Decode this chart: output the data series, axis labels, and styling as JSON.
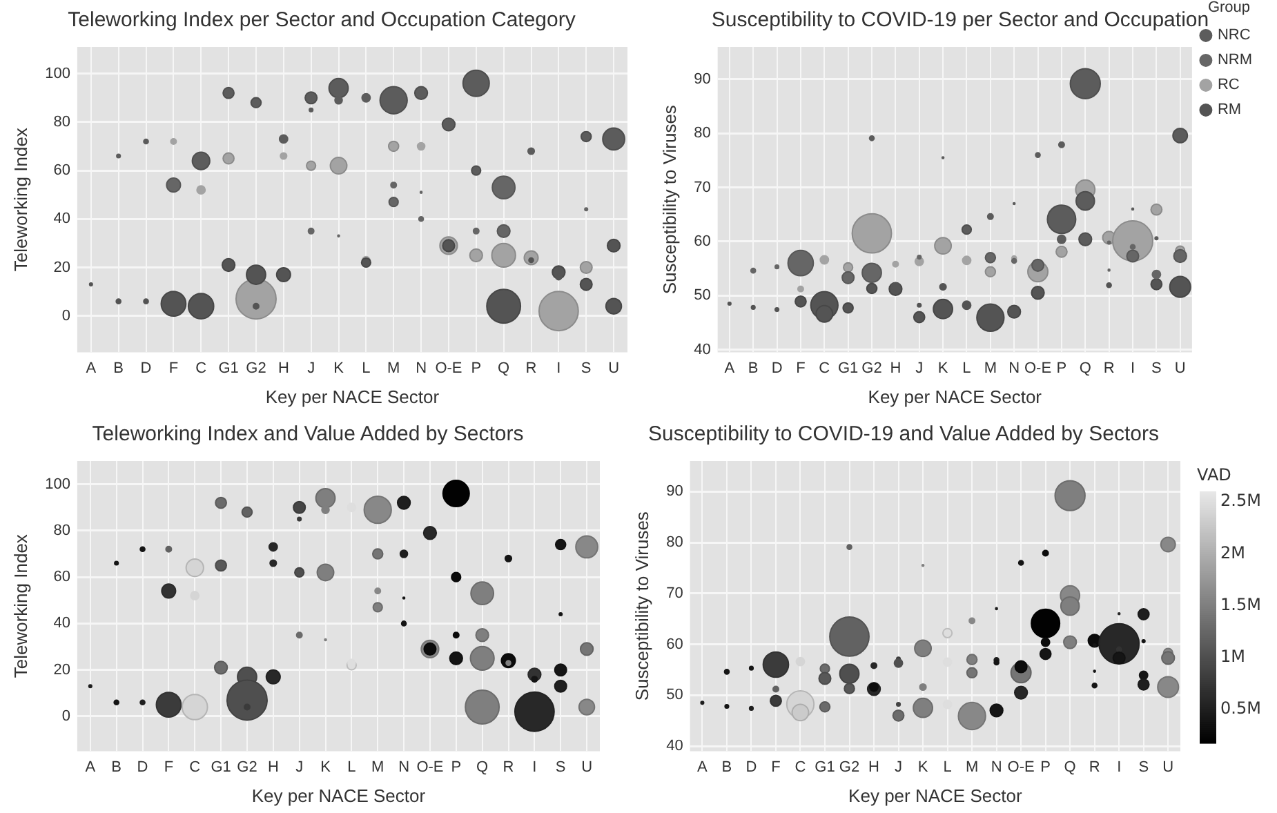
{
  "chart_data": [
    {
      "type": "bubble",
      "title": "Teleworking Index per Sector and Occupation Category",
      "xlabel": "Key per NACE Sector",
      "ylabel": "Teleworking Index",
      "categories": [
        "A",
        "B",
        "D",
        "F",
        "C",
        "G1",
        "G2",
        "H",
        "J",
        "K",
        "L",
        "M",
        "N",
        "O-E",
        "P",
        "Q",
        "R",
        "I",
        "S",
        "U"
      ],
      "ylim": [
        -15,
        111
      ],
      "yticks": [
        0,
        20,
        40,
        60,
        80,
        100
      ],
      "grid": true,
      "legend": false,
      "series": [
        {
          "color": "#5c5c5c",
          "x": [
            "B",
            "D",
            "C",
            "G1",
            "G2",
            "H",
            "J",
            "J",
            "K",
            "K",
            "L",
            "M",
            "N",
            "O-E",
            "P",
            "P",
            "R",
            "S",
            "U"
          ],
          "values": [
            66,
            72,
            64,
            92,
            88,
            73,
            90,
            85,
            94,
            89,
            90,
            89,
            92,
            79,
            96,
            60,
            68,
            74,
            73
          ],
          "sizes": [
            0.008,
            0.013,
            0.19,
            0.074,
            0.063,
            0.042,
            0.087,
            0.008,
            0.23,
            0.033,
            0.042,
            0.46,
            0.1,
            0.1,
            0.43,
            0.052,
            0.025,
            0.063,
            0.3
          ]
        },
        {
          "color": "#666666",
          "x": [
            "F",
            "J",
            "K",
            "M",
            "M",
            "N",
            "N",
            "P",
            "Q",
            "Q",
            "S"
          ],
          "values": [
            54,
            35,
            33,
            54,
            47,
            51,
            40,
            35,
            53,
            35,
            44
          ],
          "sizes": [
            0.12,
            0.019,
            0.002,
            0.019,
            0.052,
            0.002,
            0.013,
            0.019,
            0.32,
            0.1,
            0.005
          ]
        },
        {
          "color": "#a3a3a3",
          "x": [
            "F",
            "C",
            "G1",
            "G2",
            "H",
            "J",
            "K",
            "L",
            "M",
            "N",
            "O-E",
            "P",
            "Q",
            "R",
            "I",
            "S"
          ],
          "values": [
            72,
            52,
            65,
            7,
            66,
            62,
            62,
            23,
            70,
            70,
            29,
            25,
            25,
            24,
            2,
            20
          ],
          "sizes": [
            0.019,
            0.042,
            0.074,
            1,
            0.025,
            0.052,
            0.17,
            0.033,
            0.063,
            0.033,
            0.19,
            0.1,
            0.35,
            0.12,
            0.96,
            0.087
          ]
        },
        {
          "color": "#545454",
          "x": [
            "A",
            "B",
            "D",
            "F",
            "C",
            "G1",
            "G2",
            "G2",
            "H",
            "L",
            "O-E",
            "R",
            "I",
            "I",
            "S",
            "U",
            "U",
            "Q"
          ],
          "values": [
            13,
            6,
            6,
            5,
            4,
            21,
            17,
            4,
            17,
            22,
            29,
            23,
            18,
            16,
            13,
            29,
            4,
            4
          ],
          "sizes": [
            0.005,
            0.013,
            0.013,
            0.38,
            0.4,
            0.1,
            0.23,
            0.019,
            0.12,
            0.052,
            0.087,
            0.013,
            0.1,
            0.019,
            0.087,
            0.1,
            0.15,
            0.71
          ]
        }
      ]
    },
    {
      "type": "bubble",
      "title": "Susceptibility to COVID-19 per Sector and Occupation",
      "xlabel": "Key per NACE Sector",
      "ylabel": "Susceptibility to Viruses",
      "categories": [
        "A",
        "B",
        "D",
        "F",
        "C",
        "G1",
        "G2",
        "H",
        "J",
        "K",
        "L",
        "M",
        "N",
        "O-E",
        "P",
        "Q",
        "R",
        "I",
        "S",
        "U"
      ],
      "ylim": [
        39.5,
        96
      ],
      "yticks": [
        40,
        50,
        60,
        70,
        80,
        90
      ],
      "grid": true,
      "legend": "top right",
      "legend_title": "Group",
      "series": [
        {
          "name": "NRC",
          "color": "#5c5c5c",
          "x": [
            "G2",
            "K",
            "L",
            "M",
            "N",
            "O-E",
            "P",
            "P",
            "P",
            "Q",
            "Q",
            "Q",
            "I",
            "S",
            "U"
          ],
          "values": [
            79.1,
            75.5,
            62.2,
            64.6,
            67,
            76,
            77.9,
            64.1,
            60.4,
            89.2,
            67.5,
            60.4,
            66,
            60.6,
            79.6
          ],
          "sizes": [
            0.013,
            0.002,
            0.052,
            0.019,
            0.002,
            0.013,
            0.019,
            0.5,
            0.042,
            0.56,
            0.21,
            0.1,
            0.002,
            0.005,
            0.13
          ]
        },
        {
          "name": "NRM",
          "color": "#666666",
          "x": [
            "B",
            "D",
            "F",
            "G1",
            "G2",
            "J",
            "M",
            "N",
            "O-E",
            "R",
            "R",
            "I",
            "I",
            "S",
            "U"
          ],
          "values": [
            54.6,
            55.3,
            56,
            53.3,
            54.2,
            57.1,
            57,
            56.4,
            55.6,
            59.8,
            54.7,
            57.3,
            59,
            53.9,
            57.3
          ],
          "sizes": [
            0.013,
            0.008,
            0.4,
            0.087,
            0.23,
            0.008,
            0.063,
            0.013,
            0.087,
            0.005,
            0.002,
            0.087,
            0.013,
            0.042,
            0.1
          ]
        },
        {
          "name": "RC",
          "color": "#a3a3a3",
          "x": [
            "F",
            "C",
            "G1",
            "G2",
            "H",
            "J",
            "K",
            "L",
            "M",
            "N",
            "O-E",
            "P",
            "Q",
            "R",
            "I",
            "S",
            "U"
          ],
          "values": [
            51.2,
            56.6,
            55.2,
            61.5,
            55.8,
            56.3,
            59.2,
            56.5,
            54.4,
            56.9,
            54.4,
            58.1,
            69.6,
            60.7,
            60.1,
            65.9,
            58.3
          ],
          "sizes": [
            0.019,
            0.042,
            0.052,
            0.96,
            0.019,
            0.042,
            0.17,
            0.042,
            0.063,
            0.013,
            0.25,
            0.074,
            0.23,
            0.1,
            1,
            0.074,
            0.052
          ]
        },
        {
          "name": "RM",
          "color": "#545454",
          "x": [
            "A",
            "B",
            "D",
            "F",
            "C",
            "C",
            "G1",
            "G2",
            "H",
            "H",
            "J",
            "J",
            "K",
            "K",
            "L",
            "M",
            "N",
            "O-E",
            "R",
            "S",
            "U"
          ],
          "values": [
            48.5,
            47.8,
            47.4,
            48.9,
            48.2,
            46.6,
            47.7,
            51.3,
            51.2,
            51.6,
            48.2,
            46,
            51.6,
            47.5,
            48.2,
            45.9,
            47,
            50.5,
            51.9,
            52.1,
            51.6
          ],
          "sizes": [
            0.005,
            0.008,
            0.008,
            0.074,
            0.46,
            0.17,
            0.063,
            0.063,
            0.1,
            0.042,
            0.008,
            0.074,
            0.025,
            0.23,
            0.042,
            0.46,
            0.1,
            0.1,
            0.013,
            0.074,
            0.27
          ]
        }
      ]
    },
    {
      "type": "bubble",
      "title": "Teleworking Index and Value Added by Sectors",
      "xlabel": "Key per NACE Sector",
      "ylabel": "Teleworking Index",
      "categories": [
        "A",
        "B",
        "D",
        "F",
        "C",
        "G1",
        "G2",
        "H",
        "J",
        "K",
        "L",
        "M",
        "N",
        "O-E",
        "P",
        "Q",
        "R",
        "I",
        "S",
        "U"
      ],
      "ylim": [
        -15,
        110
      ],
      "yticks": [
        0,
        20,
        40,
        60,
        80,
        100
      ],
      "grid": true,
      "legend": false,
      "series": [
        {
          "x": [
            "A",
            "B",
            "B",
            "D",
            "D",
            "F",
            "F",
            "F",
            "C",
            "C",
            "C",
            "G1",
            "G1",
            "G1",
            "G2",
            "G2",
            "G2",
            "G2",
            "H",
            "H",
            "H",
            "J",
            "J",
            "J",
            "J",
            "K",
            "K",
            "K",
            "K",
            "L",
            "L",
            "L",
            "M",
            "M",
            "M",
            "M",
            "N",
            "N",
            "N",
            "N",
            "O-E",
            "O-E",
            "O-E",
            "P",
            "P",
            "P",
            "P",
            "Q",
            "Q",
            "Q",
            "Q",
            "R",
            "R",
            "R",
            "I",
            "I",
            "I",
            "S",
            "S",
            "S",
            "S",
            "U",
            "U",
            "U"
          ],
          "values": [
            13,
            66,
            6,
            72,
            6,
            72,
            54,
            5,
            64,
            52,
            4,
            92,
            65,
            21,
            88,
            17,
            7,
            4,
            73,
            66,
            17,
            90,
            85,
            62,
            35,
            94,
            89,
            62,
            33,
            90,
            22,
            23,
            89,
            70,
            54,
            47,
            92,
            70,
            51,
            40,
            79,
            29,
            29,
            96,
            60,
            35,
            25,
            53,
            35,
            25,
            4,
            68,
            24,
            23,
            2,
            18,
            16,
            74,
            44,
            20,
            13,
            73,
            29,
            4
          ],
          "sizes": [
            0.005,
            0.008,
            0.013,
            0.013,
            0.013,
            0.019,
            0.12,
            0.38,
            0.19,
            0.042,
            0.4,
            0.074,
            0.074,
            0.1,
            0.063,
            0.23,
            1,
            0.019,
            0.042,
            0.025,
            0.12,
            0.087,
            0.008,
            0.052,
            0.019,
            0.23,
            0.033,
            0.17,
            0.002,
            0.042,
            0.052,
            0.033,
            0.46,
            0.063,
            0.019,
            0.052,
            0.1,
            0.033,
            0.002,
            0.013,
            0.1,
            0.19,
            0.087,
            0.43,
            0.052,
            0.019,
            0.1,
            0.32,
            0.1,
            0.35,
            0.71,
            0.025,
            0.12,
            0.013,
            0.96,
            0.1,
            0.019,
            0.063,
            0.005,
            0.087,
            0.087,
            0.3,
            0.1,
            0.15
          ],
          "colors": [
            "#1f1f1f",
            "#151515",
            "#151515",
            "#151515",
            "#1f1f1f",
            "#626262",
            "#323232",
            "#3b3b3b",
            "#d5d5d5",
            "#d5d5d5",
            "#d5d5d5",
            "#6b6b6b",
            "#585858",
            "#6b6b6b",
            "#626262",
            "#4f4f4f",
            "#4f4f4f",
            "#3b3b3b",
            "#282828",
            "#282828",
            "#282828",
            "#454545",
            "#3b3b3b",
            "#4f4f4f",
            "#6b6b6b",
            "#7f7f7f",
            "#7f7f7f",
            "#7f7f7f",
            "#7f7f7f",
            "#dedede",
            "#dedede",
            "#dedede",
            "#888888",
            "#757575",
            "#888888",
            "#7f7f7f",
            "#1f1f1f",
            "#1f1f1f",
            "#151515",
            "#151515",
            "#282828",
            "#888888",
            "#0c0c0c",
            "#020202",
            "#0c0c0c",
            "#0c0c0c",
            "#151515",
            "#7f7f7f",
            "#7f7f7f",
            "#7f7f7f",
            "#7f7f7f",
            "#151515",
            "#0c0c0c",
            "#7f7f7f",
            "#282828",
            "#323232",
            "#151515",
            "#151515",
            "#151515",
            "#151515",
            "#1f1f1f",
            "#888888",
            "#757575",
            "#888888"
          ]
        }
      ]
    },
    {
      "type": "bubble",
      "title": "Susceptibility to COVID-19 and Value Added by Sectors",
      "xlabel": "Key per NACE Sector",
      "ylabel": "Susceptibility to Viruses",
      "categories": [
        "A",
        "B",
        "D",
        "F",
        "C",
        "G1",
        "G2",
        "H",
        "J",
        "K",
        "L",
        "M",
        "N",
        "O-E",
        "P",
        "Q",
        "R",
        "I",
        "S",
        "U"
      ],
      "ylim": [
        39,
        96
      ],
      "yticks": [
        40,
        50,
        60,
        70,
        80,
        90
      ],
      "grid": true,
      "legend": false,
      "clabel": "VAD",
      "clim": [
        180000,
        2600000
      ],
      "cticks": [
        {
          "value": 500000,
          "label": "0.5M"
        },
        {
          "value": 1000000,
          "label": "1M"
        },
        {
          "value": 1500000,
          "label": "1.5M"
        },
        {
          "value": 2000000,
          "label": "2M"
        },
        {
          "value": 2500000,
          "label": "2.5M"
        }
      ],
      "series": [
        {
          "x": [
            "A",
            "B",
            "B",
            "D",
            "D",
            "F",
            "F",
            "F",
            "C",
            "C",
            "C",
            "G1",
            "G1",
            "G1",
            "G2",
            "G2",
            "G2",
            "G2",
            "H",
            "H",
            "H",
            "J",
            "J",
            "J",
            "J",
            "K",
            "K",
            "K",
            "K",
            "L",
            "L",
            "L",
            "M",
            "M",
            "M",
            "M",
            "N",
            "N",
            "N",
            "N",
            "O-E",
            "O-E",
            "O-E",
            "O-E",
            "P",
            "P",
            "P",
            "P",
            "Q",
            "Q",
            "Q",
            "Q",
            "R",
            "R",
            "R",
            "R",
            "I",
            "I",
            "I",
            "I",
            "S",
            "S",
            "S",
            "S",
            "U",
            "U",
            "U",
            "U"
          ],
          "values": [
            48.5,
            54.6,
            47.8,
            55.3,
            47.4,
            56,
            51.2,
            48.9,
            56.6,
            48.2,
            46.6,
            55.2,
            53.3,
            47.7,
            79.1,
            61.5,
            54.2,
            51.3,
            55.8,
            51.2,
            51.6,
            57.1,
            56.3,
            48.2,
            46,
            75.5,
            59.2,
            51.6,
            47.5,
            62.2,
            56.5,
            48.2,
            64.6,
            57,
            54.4,
            45.9,
            67,
            56.9,
            56.4,
            47,
            76,
            54.4,
            55.6,
            50.5,
            77.9,
            64.1,
            60.4,
            58.1,
            89.2,
            69.6,
            67.5,
            60.4,
            60.7,
            59.8,
            54.7,
            51.9,
            66,
            60.1,
            59,
            57.3,
            65.9,
            60.6,
            53.9,
            52.1,
            79.6,
            58.3,
            57.3,
            51.6
          ],
          "sizes": [
            0.005,
            0.013,
            0.008,
            0.008,
            0.008,
            0.4,
            0.019,
            0.074,
            0.042,
            0.46,
            0.17,
            0.052,
            0.087,
            0.063,
            0.013,
            0.96,
            0.23,
            0.063,
            0.019,
            0.1,
            0.042,
            0.008,
            0.042,
            0.008,
            0.074,
            0.002,
            0.17,
            0.025,
            0.23,
            0.052,
            0.042,
            0.042,
            0.019,
            0.063,
            0.063,
            0.46,
            0.002,
            0.013,
            0.013,
            0.1,
            0.013,
            0.25,
            0.087,
            0.1,
            0.019,
            0.5,
            0.042,
            0.074,
            0.56,
            0.23,
            0.21,
            0.1,
            0.1,
            0.005,
            0.002,
            0.013,
            0.002,
            1,
            0.013,
            0.087,
            0.074,
            0.005,
            0.042,
            0.074,
            0.13,
            0.052,
            0.1,
            0.27
          ],
          "cvalues": [
            500000,
            400000,
            400000,
            400000,
            500000,
            800000,
            1200000,
            800000,
            2400000,
            2400000,
            2300000,
            1300000,
            1100000,
            1300000,
            1200000,
            1200000,
            1000000,
            1100000,
            600000,
            600000,
            300000,
            800000,
            1000000,
            900000,
            1300000,
            1500000,
            1500000,
            1500000,
            1500000,
            2500000,
            2500000,
            2500000,
            1600000,
            1500000,
            1400000,
            1600000,
            500000,
            500000,
            400000,
            400000,
            400000,
            1400000,
            300000,
            600000,
            300000,
            200000,
            300000,
            400000,
            1500000,
            1600000,
            1500000,
            1500000,
            300000,
            400000,
            400000,
            400000,
            600000,
            600000,
            700000,
            400000,
            500000,
            400000,
            400000,
            500000,
            1600000,
            1600000,
            1400000,
            1600000
          ]
        }
      ]
    }
  ]
}
